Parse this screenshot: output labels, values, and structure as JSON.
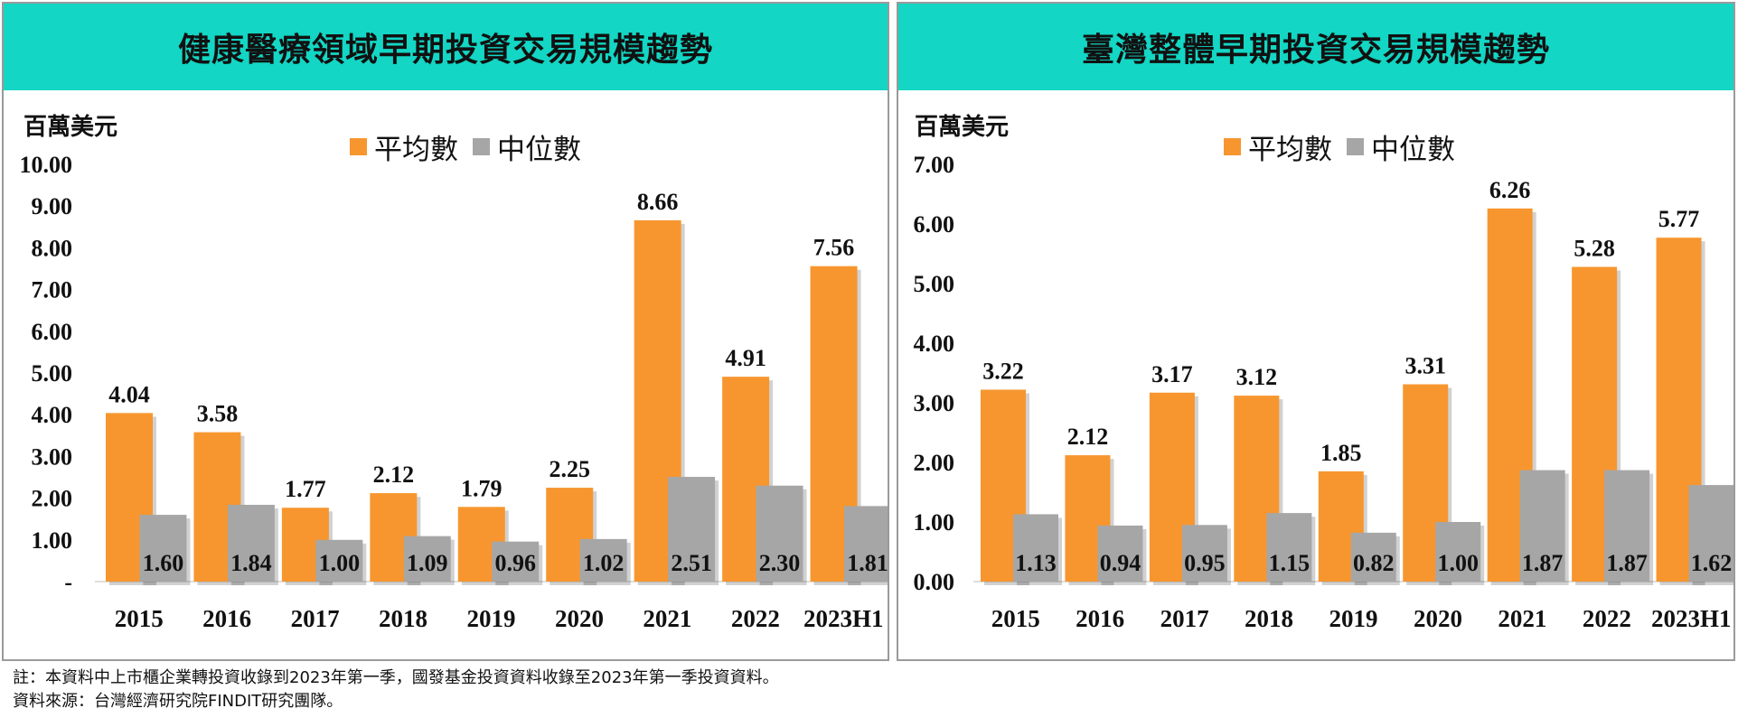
{
  "colors": {
    "average": "#f7962f",
    "median": "#a6a6a6",
    "header": "#13d6c4"
  },
  "left": {
    "title": "健康醫療領域早期投資交易規模趨勢",
    "unit": "百萬美元",
    "legend": [
      "平均數",
      "中位數"
    ],
    "chart_data": {
      "type": "bar",
      "categories": [
        "2015",
        "2016",
        "2017",
        "2018",
        "2019",
        "2020",
        "2021",
        "2022",
        "2023H1"
      ],
      "series": [
        {
          "name": "平均數",
          "values": [
            4.04,
            3.58,
            1.77,
            2.12,
            1.79,
            2.25,
            8.66,
            4.91,
            7.56
          ],
          "labels": [
            "4.04",
            "3.58",
            "1.77",
            "2.12",
            "1.79",
            "2.25",
            "8.66",
            "4.91",
            "7.56"
          ]
        },
        {
          "name": "中位數",
          "values": [
            1.6,
            1.84,
            1.0,
            1.09,
            0.96,
            1.02,
            2.51,
            2.3,
            1.81
          ],
          "labels": [
            "1.60",
            "1.84",
            "1.00",
            "1.09",
            "0.96",
            "1.02",
            "2.51",
            "2.30",
            "1.81"
          ]
        }
      ],
      "ylim": [
        0,
        10
      ],
      "yticks": [
        "-",
        "1.00",
        "2.00",
        "3.00",
        "4.00",
        "5.00",
        "6.00",
        "7.00",
        "8.00",
        "9.00",
        "10.00"
      ],
      "legend_position": "top-center"
    }
  },
  "right": {
    "title": "臺灣整體早期投資交易規模趨勢",
    "unit": "百萬美元",
    "legend": [
      "平均數",
      "中位數"
    ],
    "chart_data": {
      "type": "bar",
      "categories": [
        "2015",
        "2016",
        "2017",
        "2018",
        "2019",
        "2020",
        "2021",
        "2022",
        "2023H1"
      ],
      "series": [
        {
          "name": "平均數",
          "values": [
            3.22,
            2.12,
            3.17,
            3.12,
            1.85,
            3.31,
            6.26,
            5.28,
            5.77
          ],
          "labels": [
            "3.22",
            "2.12",
            "3.17",
            "3.12",
            "1.85",
            "3.31",
            "6.26",
            "5.28",
            "5.77"
          ]
        },
        {
          "name": "中位數",
          "values": [
            1.13,
            0.94,
            0.95,
            1.15,
            0.82,
            1.0,
            1.87,
            1.87,
            1.62
          ],
          "labels": [
            "1.13",
            "0.94",
            "0.95",
            "1.15",
            "0.82",
            "1.00",
            "1.87",
            "1.87",
            "1.62"
          ]
        }
      ],
      "ylim": [
        0,
        7
      ],
      "yticks": [
        "0.00",
        "1.00",
        "2.00",
        "3.00",
        "4.00",
        "5.00",
        "6.00",
        "7.00"
      ],
      "legend_position": "top-center"
    }
  },
  "footnotes": [
    "註：本資料中上市櫃企業轉投資收錄到2023年第一季，國發基金投資資料收錄至2023年第一季投資資料。",
    "資料來源：台灣經濟研究院FINDIT研究團隊。"
  ]
}
